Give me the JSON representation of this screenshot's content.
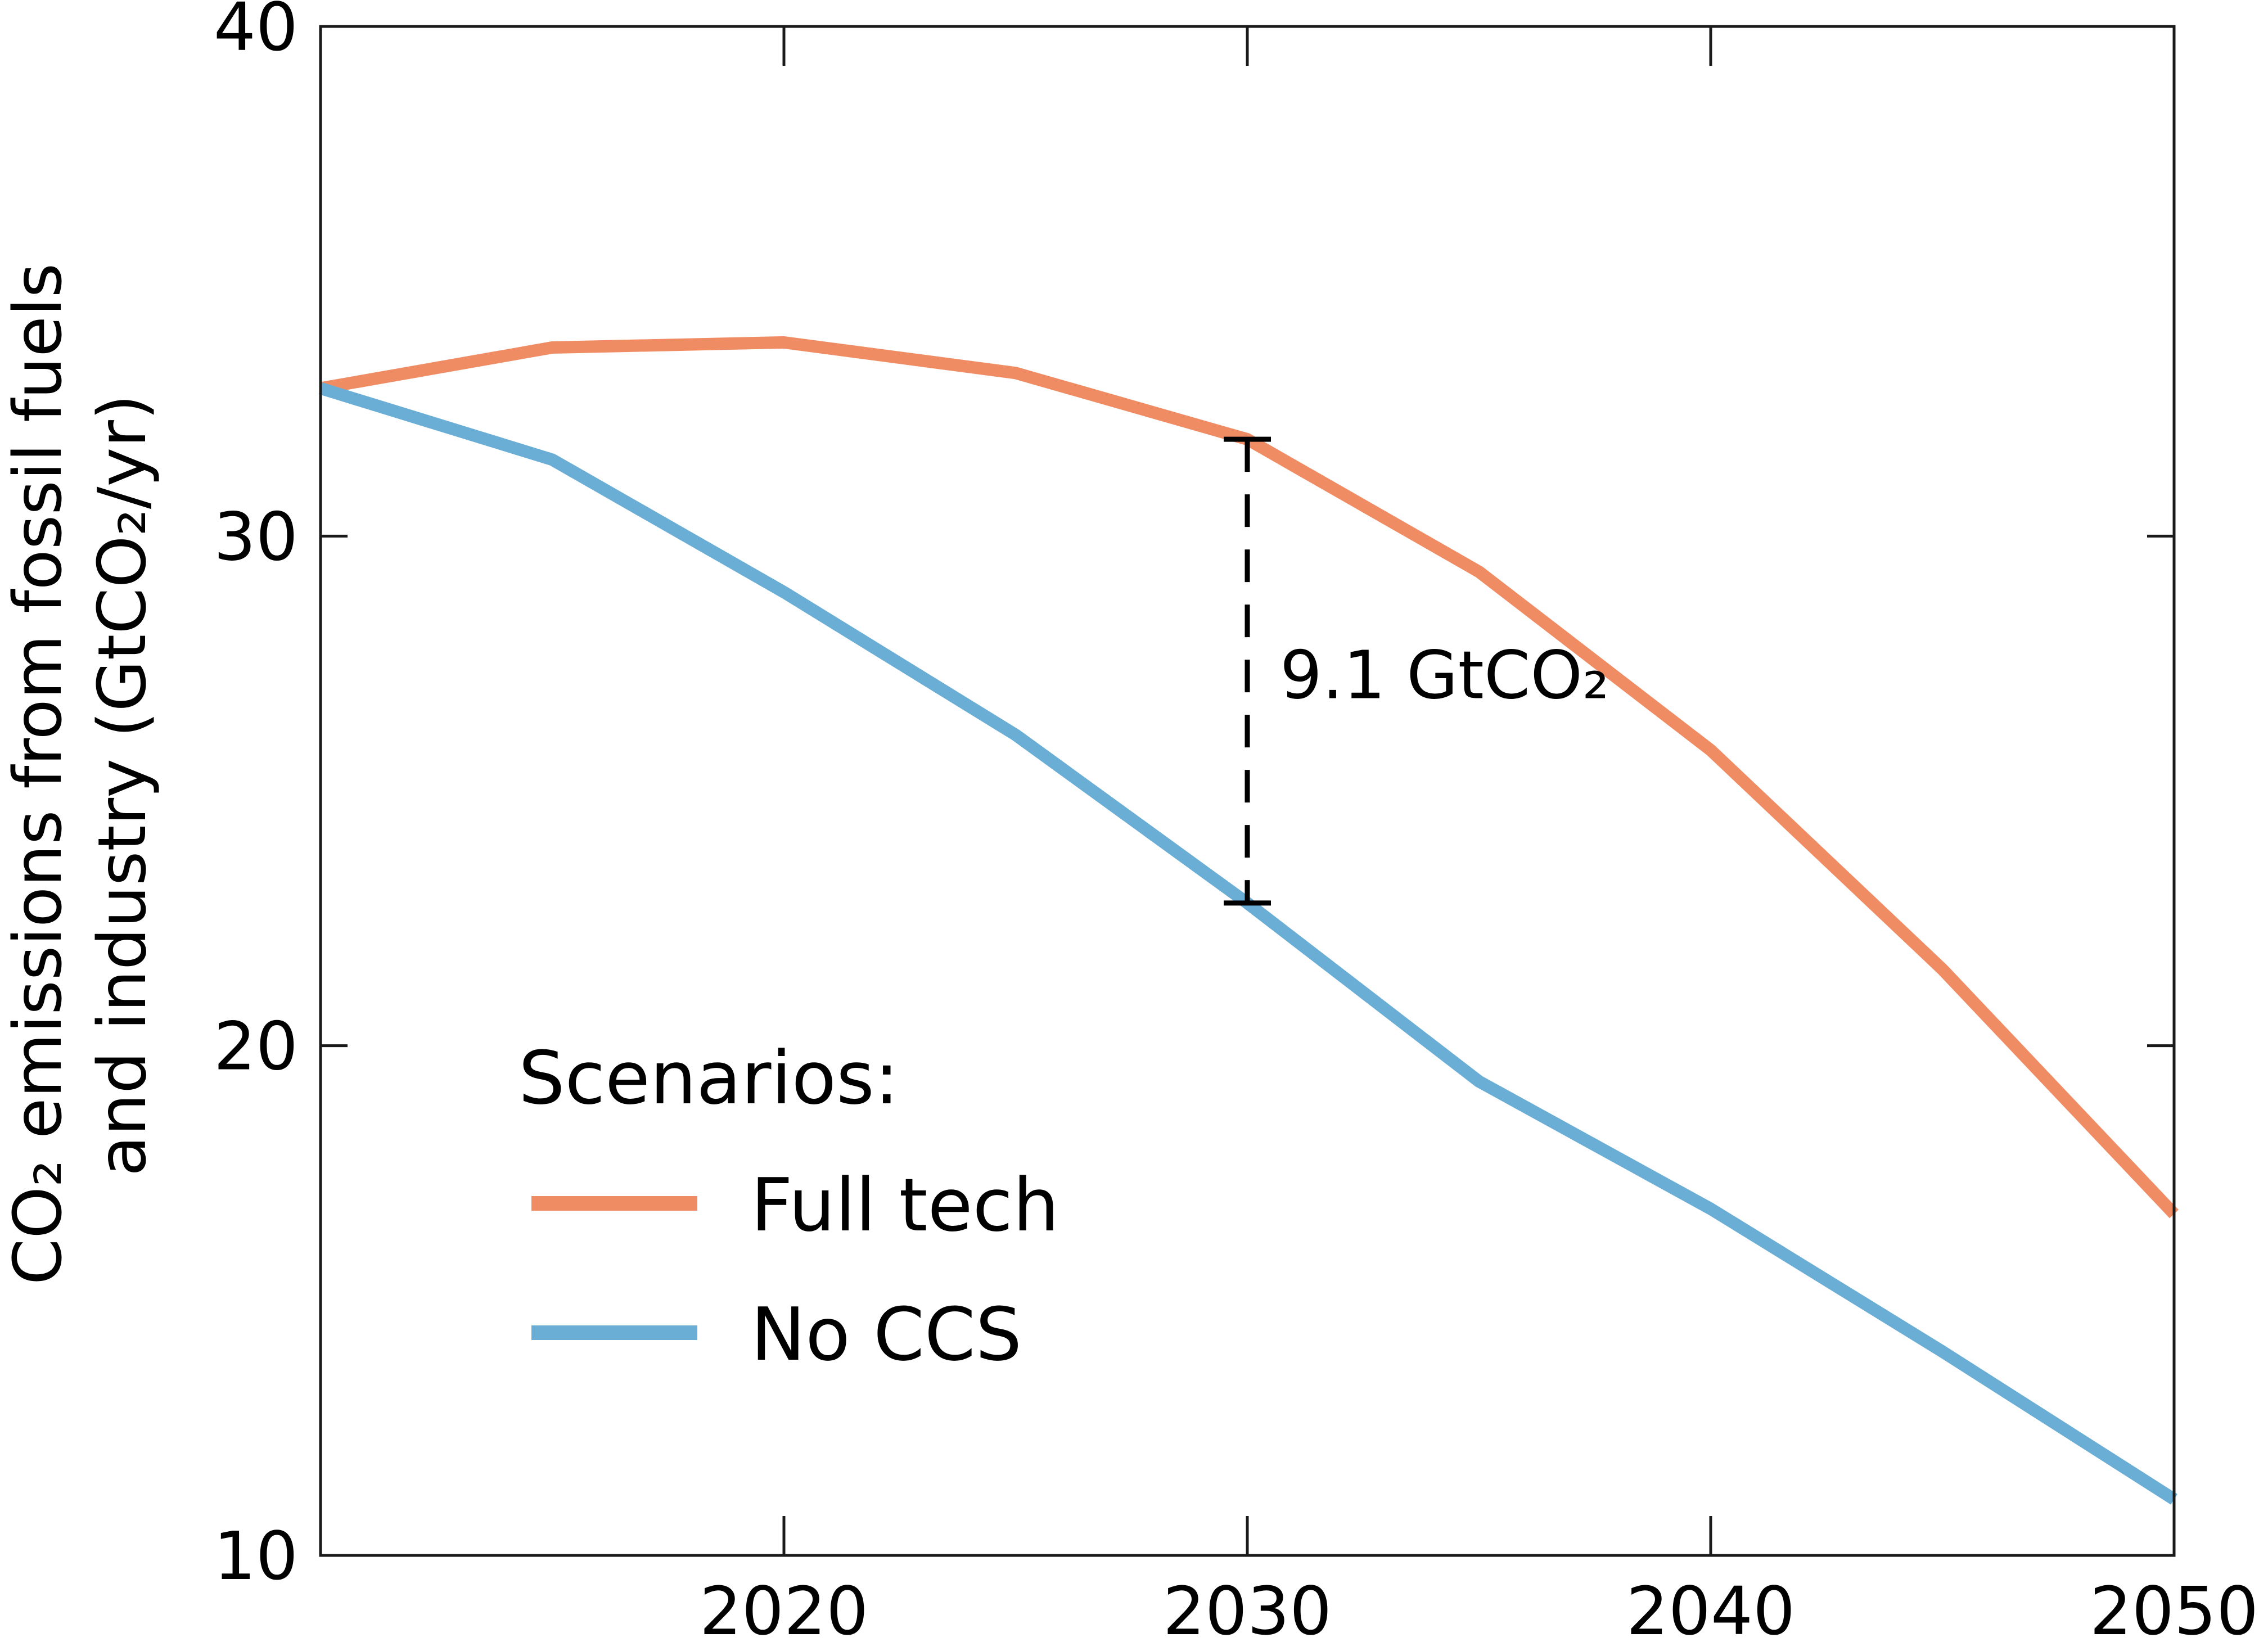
{
  "chart_data": {
    "type": "line",
    "title": "",
    "xlabel": "",
    "ylabel_lines": [
      "CO₂ emissions from fossil fuels",
      "and industry (GtCO₂/yr)"
    ],
    "xlim": [
      2010,
      2050
    ],
    "ylim": [
      10,
      40
    ],
    "x_ticks": [
      2020,
      2030,
      2040,
      2050
    ],
    "y_ticks": [
      10,
      20,
      30,
      40
    ],
    "x_tick_labels": [
      "2020",
      "2030",
      "2040",
      "2050"
    ],
    "y_tick_labels": [
      "10",
      "20",
      "30",
      "40"
    ],
    "grid": false,
    "legend": {
      "title": "Scenarios:",
      "position": "bottom-left"
    },
    "series": [
      {
        "name": "Full tech",
        "color": "#F08C64",
        "x": [
          2010,
          2015,
          2020,
          2025,
          2030,
          2035,
          2040,
          2045,
          2050
        ],
        "values": [
          32.9,
          33.7,
          33.8,
          33.2,
          31.9,
          29.3,
          25.8,
          21.5,
          16.7
        ]
      },
      {
        "name": "No CCS",
        "color": "#6AAED6",
        "x": [
          2010,
          2015,
          2020,
          2025,
          2030,
          2035,
          2040,
          2045,
          2050
        ],
        "values": [
          32.9,
          31.5,
          28.9,
          26.1,
          22.8,
          19.3,
          16.8,
          14.0,
          11.1
        ]
      }
    ],
    "annotations": [
      {
        "text": "9.1 GtCO₂",
        "x": 2030,
        "y_top": 31.9,
        "y_bottom": 22.8,
        "style": "dashed-bracket"
      }
    ]
  }
}
